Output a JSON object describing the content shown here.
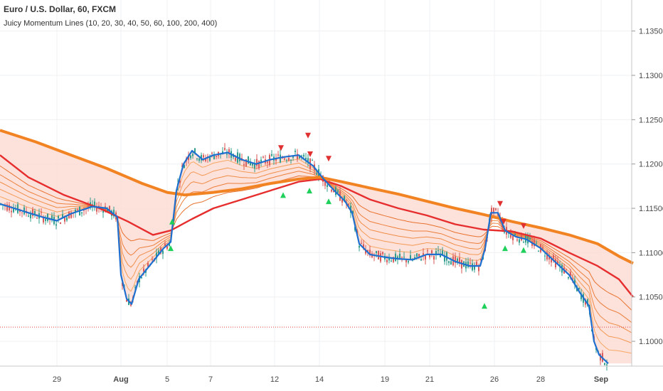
{
  "header": {
    "symbol_line": "Euro / U.S. Dollar, 60, FXCM",
    "indicator_line": "Juicy Momentum Lines (10, 20, 30, 40, 50, 60, 100, 200, 400)"
  },
  "chart_data": {
    "type": "line",
    "title": "Euro / U.S. Dollar, 60, FXCM",
    "indicator": "Juicy Momentum Lines (10, 20, 30, 40, 50, 60, 100, 200, 400)",
    "x_tick_labels": [
      "29",
      "Aug",
      "5",
      "7",
      "12",
      "14",
      "19",
      "21",
      "26",
      "28",
      "Sep"
    ],
    "y_tick_labels": [
      "1.10000",
      "1.10500",
      "1.11000",
      "1.11500",
      "1.12000",
      "1.12500",
      "1.13000",
      "1.13500"
    ],
    "ylim": [
      1.0972,
      1.1385
    ],
    "horizontal_line": 1.1016,
    "series": [
      {
        "color": "#e62e2e",
        "values": [
          [
            0,
            1.121
          ],
          [
            40,
            1.1185
          ],
          [
            90,
            1.1165
          ],
          [
            140,
            1.115
          ],
          [
            180,
            1.1135
          ],
          [
            215,
            1.112
          ],
          [
            240,
            1.1125
          ],
          [
            270,
            1.1138
          ],
          [
            300,
            1.115
          ],
          [
            340,
            1.116
          ],
          [
            380,
            1.117
          ],
          [
            420,
            1.118
          ],
          [
            450,
            1.1183
          ],
          [
            480,
            1.1175
          ],
          [
            520,
            1.116
          ],
          [
            560,
            1.115
          ],
          [
            600,
            1.1142
          ],
          [
            640,
            1.1132
          ],
          [
            680,
            1.1126
          ],
          [
            720,
            1.1124
          ],
          [
            760,
            1.1116
          ],
          [
            800,
            1.11
          ],
          [
            840,
            1.1085
          ],
          [
            870,
            1.107
          ],
          [
            890,
            1.105
          ]
        ]
      },
      {
        "color": "#f28322",
        "values": [
          [
            0,
            1.1238
          ],
          [
            50,
            1.1225
          ],
          [
            100,
            1.121
          ],
          [
            150,
            1.1195
          ],
          [
            200,
            1.1178
          ],
          [
            235,
            1.1168
          ],
          [
            260,
            1.1165
          ],
          [
            300,
            1.1168
          ],
          [
            340,
            1.1172
          ],
          [
            380,
            1.1178
          ],
          [
            420,
            1.1183
          ],
          [
            450,
            1.1185
          ],
          [
            480,
            1.118
          ],
          [
            520,
            1.1173
          ],
          [
            560,
            1.1166
          ],
          [
            600,
            1.1158
          ],
          [
            640,
            1.115
          ],
          [
            680,
            1.1143
          ],
          [
            720,
            1.1135
          ],
          [
            760,
            1.1128
          ],
          [
            800,
            1.112
          ],
          [
            840,
            1.111
          ],
          [
            870,
            1.1096
          ],
          [
            890,
            1.1088
          ]
        ]
      },
      {
        "color": "#1e6fcf",
        "values": [
          [
            0,
            1.1155
          ],
          [
            20,
            1.115
          ],
          [
            40,
            1.1145
          ],
          [
            60,
            1.114
          ],
          [
            80,
            1.1136
          ],
          [
            100,
            1.1144
          ],
          [
            130,
            1.1152
          ],
          [
            150,
            1.115
          ],
          [
            165,
            1.114
          ],
          [
            170,
            1.1075
          ],
          [
            178,
            1.1048
          ],
          [
            185,
            1.1042
          ],
          [
            195,
            1.107
          ],
          [
            205,
            1.108
          ],
          [
            215,
            1.109
          ],
          [
            230,
            1.1105
          ],
          [
            240,
            1.1112
          ],
          [
            248,
            1.117
          ],
          [
            258,
            1.12
          ],
          [
            270,
            1.1215
          ],
          [
            285,
            1.1205
          ],
          [
            300,
            1.121
          ],
          [
            320,
            1.1213
          ],
          [
            340,
            1.1205
          ],
          [
            360,
            1.12
          ],
          [
            380,
            1.1205
          ],
          [
            400,
            1.1208
          ],
          [
            420,
            1.121
          ],
          [
            440,
            1.1198
          ],
          [
            455,
            1.1183
          ],
          [
            470,
            1.117
          ],
          [
            485,
            1.1158
          ],
          [
            495,
            1.1145
          ],
          [
            505,
            1.111
          ],
          [
            520,
            1.1098
          ],
          [
            540,
            1.1095
          ],
          [
            560,
            1.1093
          ],
          [
            580,
            1.1092
          ],
          [
            600,
            1.1098
          ],
          [
            620,
            1.1098
          ],
          [
            640,
            1.109
          ],
          [
            660,
            1.1085
          ],
          [
            675,
            1.1085
          ],
          [
            682,
            1.1105
          ],
          [
            690,
            1.1145
          ],
          [
            700,
            1.1145
          ],
          [
            710,
            1.1125
          ],
          [
            725,
            1.1118
          ],
          [
            740,
            1.1115
          ],
          [
            760,
            1.1105
          ],
          [
            780,
            1.109
          ],
          [
            800,
            1.1075
          ],
          [
            815,
            1.1055
          ],
          [
            828,
            1.104
          ],
          [
            835,
            1.1
          ],
          [
            842,
            1.0985
          ],
          [
            855,
            1.0975
          ]
        ]
      }
    ],
    "band_series_colors": [
      "#f7a864",
      "#f39a55",
      "#ef8d47",
      "#eb7f3a",
      "#e8722e"
    ],
    "up_markers": [
      [
        242,
        1.1135
      ],
      [
        240,
        1.1105
      ],
      [
        398,
        1.1165
      ],
      [
        435,
        1.117
      ],
      [
        462,
        1.1158
      ],
      [
        681,
        1.104
      ],
      [
        710,
        1.1105
      ],
      [
        736,
        1.1103
      ]
    ],
    "down_markers": [
      [
        395,
        1.1218
      ],
      [
        433,
        1.1232
      ],
      [
        436,
        1.1211
      ],
      [
        462,
        1.1206
      ],
      [
        703,
        1.1155
      ],
      [
        708,
        1.1135
      ],
      [
        736,
        1.113
      ]
    ],
    "band_fill_color": "#fcd9d2",
    "up_marker_color": "#1fd05b",
    "down_marker_color": "#e03030"
  }
}
